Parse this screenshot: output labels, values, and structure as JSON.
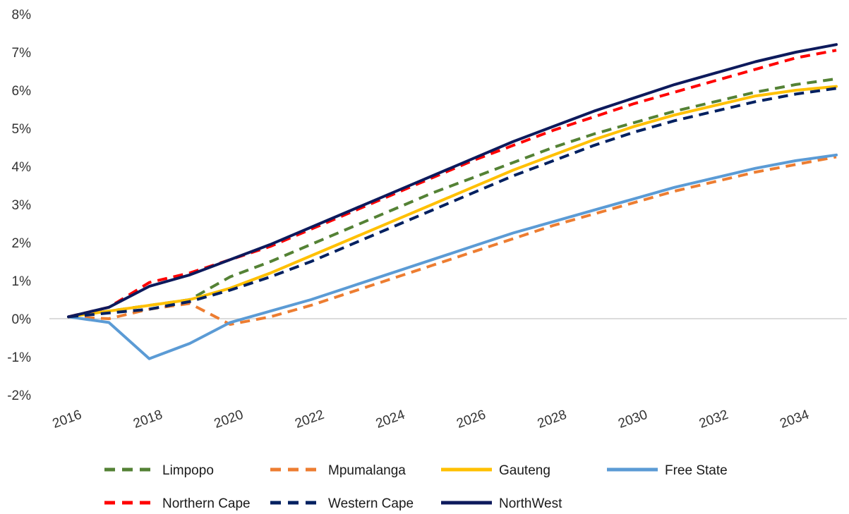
{
  "chart_data": {
    "type": "line",
    "title": "",
    "xlabel": "",
    "ylabel": "",
    "x": [
      2016,
      2017,
      2018,
      2019,
      2020,
      2021,
      2022,
      2023,
      2024,
      2025,
      2026,
      2027,
      2028,
      2029,
      2030,
      2031,
      2032,
      2033,
      2034,
      2035
    ],
    "x_tick_labels": [
      "2016",
      "2018",
      "2020",
      "2022",
      "2024",
      "2026",
      "2028",
      "2030",
      "2032",
      "2034"
    ],
    "x_tick_values": [
      2016,
      2018,
      2020,
      2022,
      2024,
      2026,
      2028,
      2030,
      2032,
      2034
    ],
    "xlim": [
      2016,
      2035
    ],
    "y_tick_labels": [
      "-2%",
      "-1%",
      "0%",
      "1%",
      "2%",
      "3%",
      "4%",
      "5%",
      "6%",
      "7%",
      "8%"
    ],
    "y_tick_values": [
      -2,
      -1,
      0,
      1,
      2,
      3,
      4,
      5,
      6,
      7,
      8
    ],
    "ylim": [
      -2,
      8
    ],
    "grid": false,
    "zero_line": true,
    "legend_position": "bottom",
    "series": [
      {
        "name": "Limpopo",
        "color": "#548235",
        "dash": "dashed",
        "values": [
          0.05,
          0.2,
          0.35,
          0.5,
          1.1,
          1.5,
          1.95,
          2.4,
          2.85,
          3.3,
          3.7,
          4.1,
          4.5,
          4.85,
          5.15,
          5.45,
          5.7,
          5.95,
          6.15,
          6.3
        ]
      },
      {
        "name": "Mpumalanga",
        "color": "#ED7D31",
        "dash": "dashed",
        "values": [
          0.05,
          0.0,
          0.25,
          0.4,
          -0.15,
          0.05,
          0.35,
          0.7,
          1.05,
          1.4,
          1.75,
          2.1,
          2.45,
          2.75,
          3.05,
          3.35,
          3.6,
          3.85,
          4.05,
          4.25
        ]
      },
      {
        "name": "Gauteng",
        "color": "#FFC000",
        "dash": "solid",
        "values": [
          0.05,
          0.2,
          0.35,
          0.5,
          0.8,
          1.2,
          1.65,
          2.1,
          2.55,
          3.0,
          3.45,
          3.9,
          4.3,
          4.7,
          5.05,
          5.35,
          5.6,
          5.85,
          6.0,
          6.1
        ]
      },
      {
        "name": "Free State",
        "color": "#5B9BD5",
        "dash": "solid",
        "values": [
          0.05,
          -0.1,
          -1.05,
          -0.65,
          -0.1,
          0.2,
          0.5,
          0.85,
          1.2,
          1.55,
          1.9,
          2.25,
          2.55,
          2.85,
          3.15,
          3.45,
          3.7,
          3.95,
          4.15,
          4.3
        ]
      },
      {
        "name": "Northern Cape",
        "color": "#FF0000",
        "dash": "dashed",
        "values": [
          0.05,
          0.3,
          0.95,
          1.2,
          1.55,
          1.9,
          2.35,
          2.8,
          3.25,
          3.7,
          4.15,
          4.55,
          4.95,
          5.3,
          5.65,
          5.95,
          6.25,
          6.55,
          6.85,
          7.05
        ]
      },
      {
        "name": "Western Cape",
        "color": "#002060",
        "dash": "dashed",
        "values": [
          0.05,
          0.15,
          0.25,
          0.45,
          0.75,
          1.1,
          1.5,
          1.95,
          2.4,
          2.85,
          3.3,
          3.75,
          4.15,
          4.55,
          4.9,
          5.2,
          5.45,
          5.7,
          5.9,
          6.05
        ]
      },
      {
        "name": "NorthWest",
        "color": "#0D1A5C",
        "dash": "solid",
        "values": [
          0.05,
          0.3,
          0.85,
          1.15,
          1.55,
          1.95,
          2.4,
          2.85,
          3.3,
          3.75,
          4.2,
          4.65,
          5.05,
          5.45,
          5.8,
          6.15,
          6.45,
          6.75,
          7.0,
          7.2
        ]
      }
    ]
  }
}
